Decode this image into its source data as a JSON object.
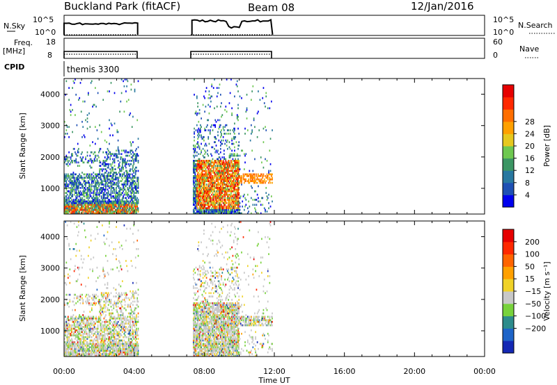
{
  "header": {
    "station": "Buckland Park (fitACF)",
    "beam": "Beam 08",
    "date": "12/Jan/2016"
  },
  "status_panel": {
    "nsky_label": "N.Sky",
    "nsky_ticks": [
      "10^5",
      "10^0"
    ],
    "nsearch_label": "N.Search",
    "freq_label_1": "Freq.",
    "freq_label_2": "[MHz]",
    "freq_ticks": [
      "18",
      "8"
    ],
    "nave_label": "Nave",
    "nave_ticks": [
      "60",
      "0"
    ],
    "cpid_label": "CPID",
    "cpid_value": "themis 3300"
  },
  "chart_data": [
    {
      "type": "heatmap",
      "name": "Power",
      "ylabel": "Slant Range [km]",
      "xlabel": "Time UT",
      "x_ticks": [
        "00:00",
        "04:00",
        "08:00",
        "12:00",
        "16:00",
        "20:00",
        "00:00"
      ],
      "x_range_hours": [
        0,
        24
      ],
      "y_ticks": [
        "1000",
        "2000",
        "3000",
        "4000"
      ],
      "y_range_km": [
        180,
        4500
      ],
      "colorbar": {
        "label": "Power [dB]",
        "ticks": [
          "4",
          "8",
          "12",
          "16",
          "20",
          "24",
          "28"
        ],
        "colors": [
          "#0000ee",
          "#1e50b4",
          "#2878a0",
          "#3c9664",
          "#6ec850",
          "#e6c81e",
          "#ffa000",
          "#ff6e00",
          "#ff2800",
          "#e60000"
        ]
      },
      "data_coverage_hours": [
        [
          0.0,
          4.2
        ],
        [
          7.3,
          11.9
        ]
      ]
    },
    {
      "type": "heatmap",
      "name": "Velocity",
      "ylabel": "Slant Range [km]",
      "xlabel": "Time UT",
      "x_ticks": [
        "00:00",
        "04:00",
        "08:00",
        "12:00",
        "16:00",
        "20:00",
        "00:00"
      ],
      "x_range_hours": [
        0,
        24
      ],
      "y_ticks": [
        "1000",
        "2000",
        "3000",
        "4000"
      ],
      "y_range_km": [
        180,
        4500
      ],
      "colorbar": {
        "label": "Velocity [m s⁻¹]",
        "ticks": [
          "200",
          "100",
          "50",
          "15",
          "−15",
          "−50",
          "−100",
          "−200"
        ],
        "colors": [
          "#1428b4",
          "#1e64c8",
          "#2d8c8c",
          "#78d23c",
          "#c8c8c8",
          "#f0d228",
          "#ffa000",
          "#ff6400",
          "#ff2800",
          "#e60000"
        ]
      },
      "data_coverage_hours": [
        [
          0.0,
          4.2
        ],
        [
          7.3,
          11.9
        ]
      ]
    }
  ]
}
